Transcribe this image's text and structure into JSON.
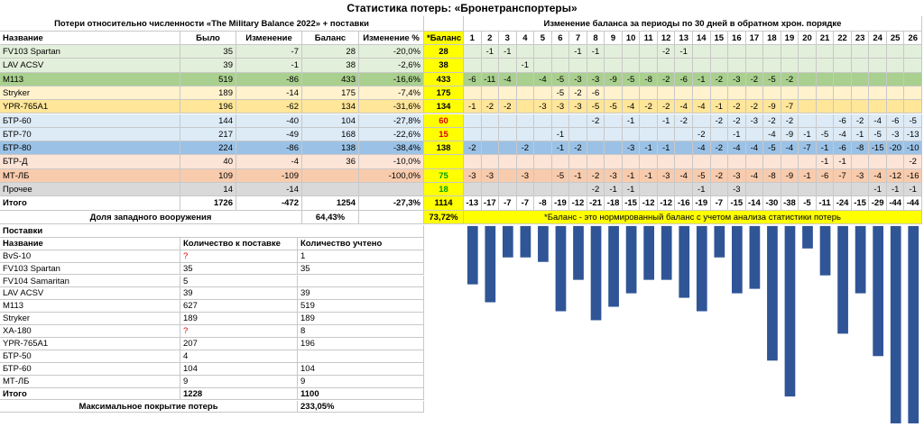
{
  "title": "Статистика потерь: «Бронетранспортеры»",
  "losses": {
    "header": "Потери относительно численности «The Military Balance 2022» + поставки",
    "columns": [
      "Название",
      "Было",
      "Изменение",
      "Баланс",
      "Изменение %",
      "*Баланс"
    ],
    "periods_header": "Изменение баланса за периоды по 30 дней в обратном хрон. порядке",
    "period_columns": [
      1,
      2,
      3,
      4,
      5,
      6,
      7,
      8,
      9,
      10,
      11,
      12,
      13,
      14,
      15,
      16,
      17,
      18,
      19,
      20,
      21,
      22,
      23,
      24,
      25,
      26
    ],
    "rows": [
      {
        "name": "FV103 Spartan",
        "was": 35,
        "change": -7,
        "balance": 28,
        "change_pct": "-20,0%",
        "norm_balance": 28,
        "color": "#e2efda",
        "periods": [
          null,
          -1,
          -1,
          null,
          null,
          null,
          -1,
          -1,
          null,
          null,
          null,
          -2,
          -1,
          null,
          null,
          null,
          null,
          null,
          null,
          null,
          null,
          null,
          null,
          null,
          null,
          null
        ]
      },
      {
        "name": "LAV ACSV",
        "was": 39,
        "change": -1,
        "balance": 38,
        "change_pct": "-2,6%",
        "norm_balance": 38,
        "color": "#e2efda",
        "periods": [
          null,
          null,
          null,
          -1,
          null,
          null,
          null,
          null,
          null,
          null,
          null,
          null,
          null,
          null,
          null,
          null,
          null,
          null,
          null,
          null,
          null,
          null,
          null,
          null,
          null,
          null
        ]
      },
      {
        "name": "M113",
        "was": 519,
        "change": -86,
        "balance": 433,
        "change_pct": "-16,6%",
        "norm_balance": 433,
        "color": "#a9d08e",
        "periods": [
          -6,
          -11,
          -4,
          null,
          -4,
          -5,
          -3,
          -3,
          -9,
          -5,
          -8,
          -2,
          -6,
          -1,
          -2,
          -3,
          -2,
          -5,
          -2,
          null,
          null,
          null,
          null,
          null,
          null,
          null
        ]
      },
      {
        "name": "Stryker",
        "was": 189,
        "change": -14,
        "balance": 175,
        "change_pct": "-7,4%",
        "norm_balance": 175,
        "color": "#fff2cc",
        "periods": [
          null,
          null,
          null,
          null,
          null,
          -5,
          -2,
          -6,
          null,
          null,
          null,
          null,
          null,
          null,
          null,
          null,
          null,
          null,
          null,
          null,
          null,
          null,
          null,
          null,
          null,
          null
        ]
      },
      {
        "name": "YPR-765A1",
        "was": 196,
        "change": -62,
        "balance": 134,
        "change_pct": "-31,6%",
        "norm_balance": 134,
        "color": "#ffe699",
        "periods": [
          -1,
          -2,
          -2,
          null,
          -3,
          -3,
          -3,
          -5,
          -5,
          -4,
          -2,
          -2,
          -4,
          -4,
          -1,
          -2,
          -2,
          -9,
          -7,
          null,
          null,
          null,
          null,
          null,
          null,
          null
        ]
      },
      {
        "name": "БТР-60",
        "was": 144,
        "change": -40,
        "balance": 104,
        "change_pct": "-27,8%",
        "norm_balance": 60,
        "norm_color": "#e00000",
        "color": "#ddebf7",
        "periods": [
          null,
          null,
          null,
          null,
          null,
          null,
          null,
          -2,
          null,
          -1,
          null,
          -1,
          -2,
          null,
          -2,
          -2,
          -3,
          -2,
          -2,
          null,
          null,
          -6,
          -2,
          -4,
          -6,
          -5
        ]
      },
      {
        "name": "БТР-70",
        "was": 217,
        "change": -49,
        "balance": 168,
        "change_pct": "-22,6%",
        "norm_balance": 15,
        "norm_color": "#e00000",
        "color": "#ddebf7",
        "periods": [
          null,
          null,
          null,
          null,
          null,
          -1,
          null,
          null,
          null,
          null,
          null,
          null,
          null,
          -2,
          null,
          -1,
          null,
          -4,
          -9,
          -1,
          -5,
          -4,
          -1,
          -5,
          -3,
          -13
        ]
      },
      {
        "name": "БТР-80",
        "was": 224,
        "change": -86,
        "balance": 138,
        "change_pct": "-38,4%",
        "norm_balance": 138,
        "color": "#9bc2e6",
        "periods": [
          -2,
          null,
          null,
          -2,
          null,
          -1,
          -2,
          null,
          null,
          -3,
          -1,
          -1,
          null,
          -4,
          -2,
          -4,
          -4,
          -5,
          -4,
          -7,
          -1,
          -6,
          -8,
          -15,
          -20,
          -10
        ]
      },
      {
        "name": "БТР-Д",
        "was": 40,
        "change": -4,
        "balance": 36,
        "change_pct": "-10,0%",
        "norm_balance": null,
        "color": "#fce4d6",
        "periods": [
          null,
          null,
          null,
          null,
          null,
          null,
          null,
          null,
          null,
          null,
          null,
          null,
          null,
          null,
          null,
          null,
          null,
          null,
          null,
          null,
          -1,
          -1,
          null,
          null,
          null,
          -2
        ]
      },
      {
        "name": "МТ-ЛБ",
        "was": 109,
        "change": -109,
        "balance": null,
        "change_pct": "-100,0%",
        "norm_balance": 75,
        "norm_color": "#00a000",
        "color": "#f8cbad",
        "periods": [
          -3,
          -3,
          null,
          -3,
          null,
          -5,
          -1,
          -2,
          -3,
          -1,
          -1,
          -3,
          -4,
          -5,
          -2,
          -3,
          -4,
          -8,
          -9,
          -1,
          -6,
          -7,
          -3,
          -4,
          -12,
          -16
        ]
      },
      {
        "name": "Прочее",
        "was": 14,
        "change": -14,
        "balance": null,
        "change_pct": null,
        "norm_balance": 18,
        "norm_color": "#00a000",
        "color": "#d9d9d9",
        "periods": [
          null,
          null,
          null,
          null,
          null,
          null,
          null,
          -2,
          -1,
          -1,
          null,
          null,
          null,
          -1,
          null,
          -3,
          null,
          null,
          null,
          null,
          null,
          null,
          null,
          -1,
          -1,
          -1
        ]
      }
    ],
    "total": {
      "name": "Итого",
      "was": 1726,
      "change": -472,
      "balance": 1254,
      "change_pct": "-27,3%",
      "norm_balance": 1114,
      "periods": [
        -13,
        -17,
        -7,
        -7,
        -8,
        -19,
        -12,
        -21,
        -18,
        -15,
        -12,
        -12,
        -16,
        -19,
        -7,
        -15,
        -14,
        -30,
        -38,
        -5,
        -11,
        -24,
        -15,
        -29,
        -44,
        -44
      ]
    },
    "western_share": {
      "label": "Доля западного вооружения",
      "value": "64,43%",
      "norm_value": "73,72%"
    },
    "note": "*Баланс - это нормированный баланс с учетом анализа статистики потерь"
  },
  "supplies": {
    "header": "Поставки",
    "columns": [
      "Название",
      "Количество к поставке",
      "Количество учтено"
    ],
    "rows": [
      {
        "name": "BvS-10",
        "to_supply": "?",
        "counted": 1
      },
      {
        "name": "FV103 Spartan",
        "to_supply": 35,
        "counted": 35
      },
      {
        "name": "FV104 Samaritan",
        "to_supply": 5,
        "counted": null
      },
      {
        "name": "LAV ACSV",
        "to_supply": 39,
        "counted": 39
      },
      {
        "name": "M113",
        "to_supply": 627,
        "counted": 519
      },
      {
        "name": "Stryker",
        "to_supply": 189,
        "counted": 189
      },
      {
        "name": "XA-180",
        "to_supply": "?",
        "counted": 8
      },
      {
        "name": "YPR-765A1",
        "to_supply": 207,
        "counted": 196
      },
      {
        "name": "БТР-50",
        "to_supply": 4,
        "counted": null
      },
      {
        "name": "БТР-60",
        "to_supply": 104,
        "counted": 104
      },
      {
        "name": "МТ-ЛБ",
        "to_supply": 9,
        "counted": 9
      }
    ],
    "total": {
      "name": "Итого",
      "to_supply": 1228,
      "counted": 1100
    },
    "coverage": {
      "label": "Максимальное покрытие потерь",
      "value": "233,05%"
    }
  },
  "bar_color": "#2f5597"
}
